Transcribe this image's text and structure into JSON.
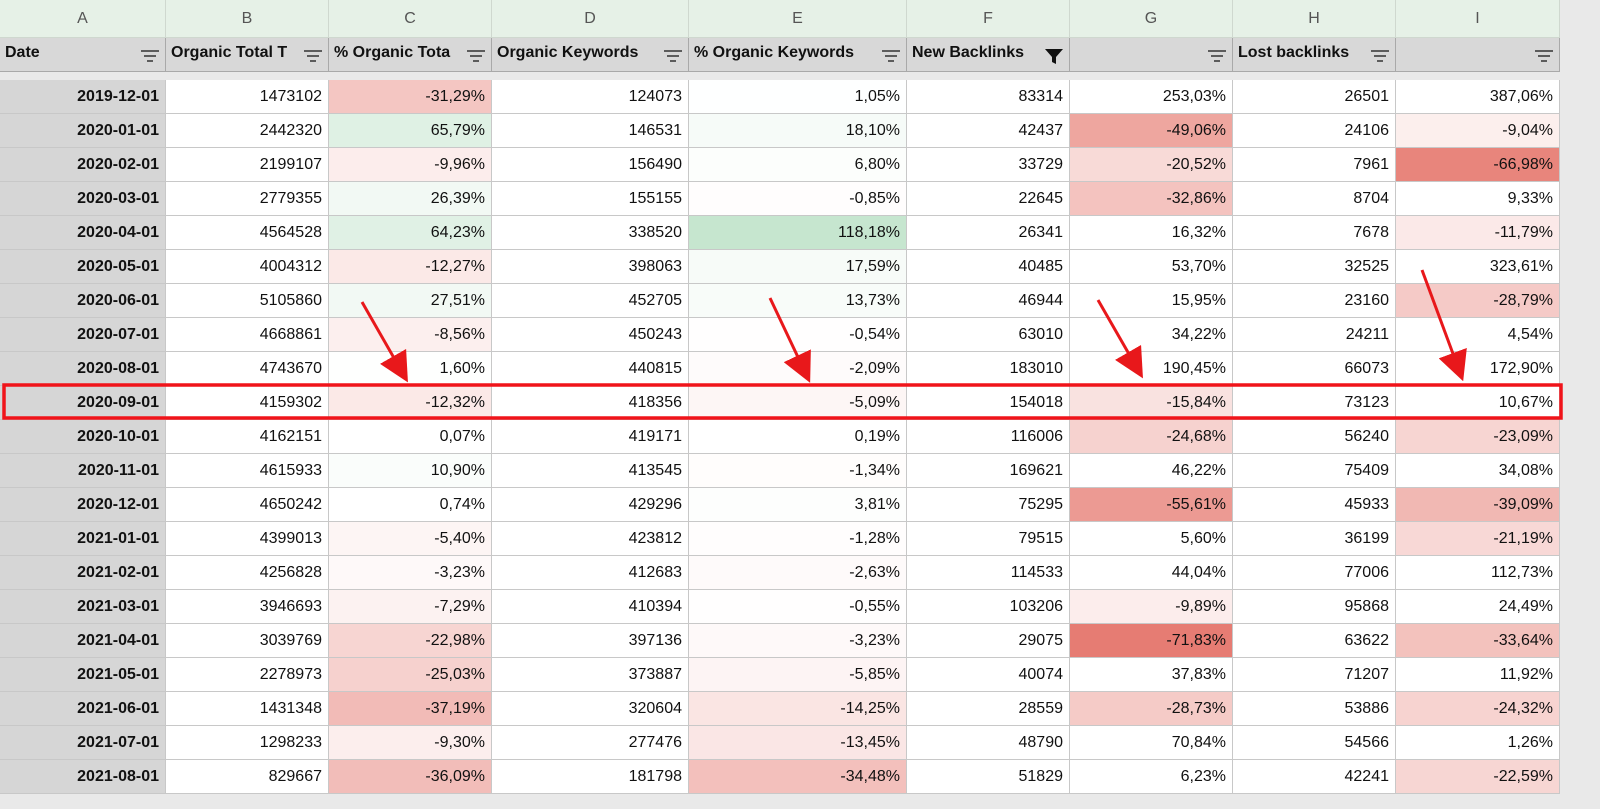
{
  "column_letters": [
    "A",
    "B",
    "C",
    "D",
    "E",
    "F",
    "G",
    "H",
    "I"
  ],
  "headers": {
    "A": "Date",
    "B": "Organic Total T",
    "C": "% Organic Tota",
    "D": "Organic Keywords",
    "E": "% Organic Keywords",
    "F": "New Backlinks",
    "H": "Lost backlinks"
  },
  "filter_active_column": "F",
  "color_scale": {
    "columns": [
      2,
      4,
      6,
      8
    ],
    "positive_columns": [
      2,
      4
    ],
    "negative_color": "#e67c73",
    "positive_color": "#c6e6cf"
  },
  "rows": [
    [
      "2019-12-01",
      "1473102",
      "-31,29%",
      "124073",
      "1,05%",
      "83314",
      "253,03%",
      "26501",
      "387,06%"
    ],
    [
      "2020-01-01",
      "2442320",
      "65,79%",
      "146531",
      "18,10%",
      "42437",
      "-49,06%",
      "24106",
      "-9,04%"
    ],
    [
      "2020-02-01",
      "2199107",
      "-9,96%",
      "156490",
      "6,80%",
      "33729",
      "-20,52%",
      "7961",
      "-66,98%"
    ],
    [
      "2020-03-01",
      "2779355",
      "26,39%",
      "155155",
      "-0,85%",
      "22645",
      "-32,86%",
      "8704",
      "9,33%"
    ],
    [
      "2020-04-01",
      "4564528",
      "64,23%",
      "338520",
      "118,18%",
      "26341",
      "16,32%",
      "7678",
      "-11,79%"
    ],
    [
      "2020-05-01",
      "4004312",
      "-12,27%",
      "398063",
      "17,59%",
      "40485",
      "53,70%",
      "32525",
      "323,61%"
    ],
    [
      "2020-06-01",
      "5105860",
      "27,51%",
      "452705",
      "13,73%",
      "46944",
      "15,95%",
      "23160",
      "-28,79%"
    ],
    [
      "2020-07-01",
      "4668861",
      "-8,56%",
      "450243",
      "-0,54%",
      "63010",
      "34,22%",
      "24211",
      "4,54%"
    ],
    [
      "2020-08-01",
      "4743670",
      "1,60%",
      "440815",
      "-2,09%",
      "183010",
      "190,45%",
      "66073",
      "172,90%"
    ],
    [
      "2020-09-01",
      "4159302",
      "-12,32%",
      "418356",
      "-5,09%",
      "154018",
      "-15,84%",
      "73123",
      "10,67%"
    ],
    [
      "2020-10-01",
      "4162151",
      "0,07%",
      "419171",
      "0,19%",
      "116006",
      "-24,68%",
      "56240",
      "-23,09%"
    ],
    [
      "2020-11-01",
      "4615933",
      "10,90%",
      "413545",
      "-1,34%",
      "169621",
      "46,22%",
      "75409",
      "34,08%"
    ],
    [
      "2020-12-01",
      "4650242",
      "0,74%",
      "429296",
      "3,81%",
      "75295",
      "-55,61%",
      "45933",
      "-39,09%"
    ],
    [
      "2021-01-01",
      "4399013",
      "-5,40%",
      "423812",
      "-1,28%",
      "79515",
      "5,60%",
      "36199",
      "-21,19%"
    ],
    [
      "2021-02-01",
      "4256828",
      "-3,23%",
      "412683",
      "-2,63%",
      "114533",
      "44,04%",
      "77006",
      "112,73%"
    ],
    [
      "2021-03-01",
      "3946693",
      "-7,29%",
      "410394",
      "-0,55%",
      "103206",
      "-9,89%",
      "95868",
      "24,49%"
    ],
    [
      "2021-04-01",
      "3039769",
      "-22,98%",
      "397136",
      "-3,23%",
      "29075",
      "-71,83%",
      "63622",
      "-33,64%"
    ],
    [
      "2021-05-01",
      "2278973",
      "-25,03%",
      "373887",
      "-5,85%",
      "40074",
      "37,83%",
      "71207",
      "11,92%"
    ],
    [
      "2021-06-01",
      "1431348",
      "-37,19%",
      "320604",
      "-14,25%",
      "28559",
      "-28,73%",
      "53886",
      "-24,32%"
    ],
    [
      "2021-07-01",
      "1298233",
      "-9,30%",
      "277476",
      "-13,45%",
      "48790",
      "70,84%",
      "54566",
      "1,26%"
    ],
    [
      "2021-08-01",
      "829667",
      "-36,09%",
      "181798",
      "-34,48%",
      "51829",
      "6,23%",
      "42241",
      "-22,59%"
    ]
  ]
}
